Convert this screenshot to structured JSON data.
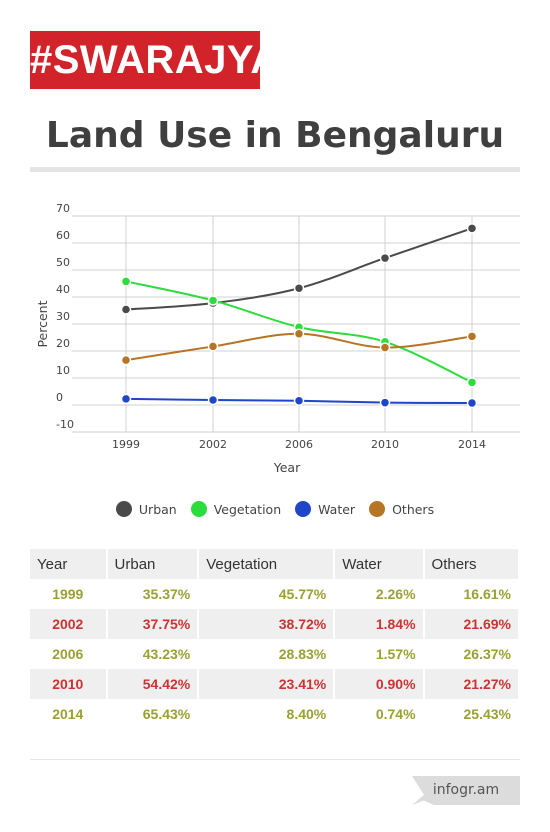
{
  "brand": {
    "logo_text": "#SWARAJYA",
    "footer_badge": "infogr.am"
  },
  "chart_data": {
    "type": "line",
    "title": "Land Use in Bengaluru",
    "xlabel": "Year",
    "ylabel": "Percent",
    "x": [
      1999,
      2002,
      2006,
      2010,
      2014
    ],
    "ylim": [
      -10,
      70
    ],
    "yticks": [
      -10,
      0,
      10,
      20,
      30,
      40,
      50,
      60,
      70
    ],
    "grid": true,
    "legend_placement": "bottom",
    "series": [
      {
        "name": "Urban",
        "color": "#4a4a4a",
        "values": [
          35.37,
          37.75,
          43.23,
          54.42,
          65.43
        ]
      },
      {
        "name": "Vegetation",
        "color": "#2bdc3c",
        "values": [
          45.77,
          38.72,
          28.83,
          23.41,
          8.4
        ]
      },
      {
        "name": "Water",
        "color": "#1f45c8",
        "values": [
          2.26,
          1.84,
          1.57,
          0.9,
          0.74
        ]
      },
      {
        "name": "Others",
        "color": "#b77424",
        "values": [
          16.61,
          21.69,
          26.37,
          21.27,
          25.43
        ]
      }
    ]
  },
  "table": {
    "headers": [
      "Year",
      "Urban",
      "Vegetation",
      "Water",
      "Others"
    ],
    "rows": [
      [
        "1999",
        "35.37%",
        "45.77%",
        "2.26%",
        "16.61%"
      ],
      [
        "2002",
        "37.75%",
        "38.72%",
        "1.84%",
        "21.69%"
      ],
      [
        "2006",
        "43.23%",
        "28.83%",
        "1.57%",
        "26.37%"
      ],
      [
        "2010",
        "54.42%",
        "23.41%",
        "0.90%",
        "21.27%"
      ],
      [
        "2014",
        "65.43%",
        "8.40%",
        "0.74%",
        "25.43%"
      ]
    ]
  }
}
